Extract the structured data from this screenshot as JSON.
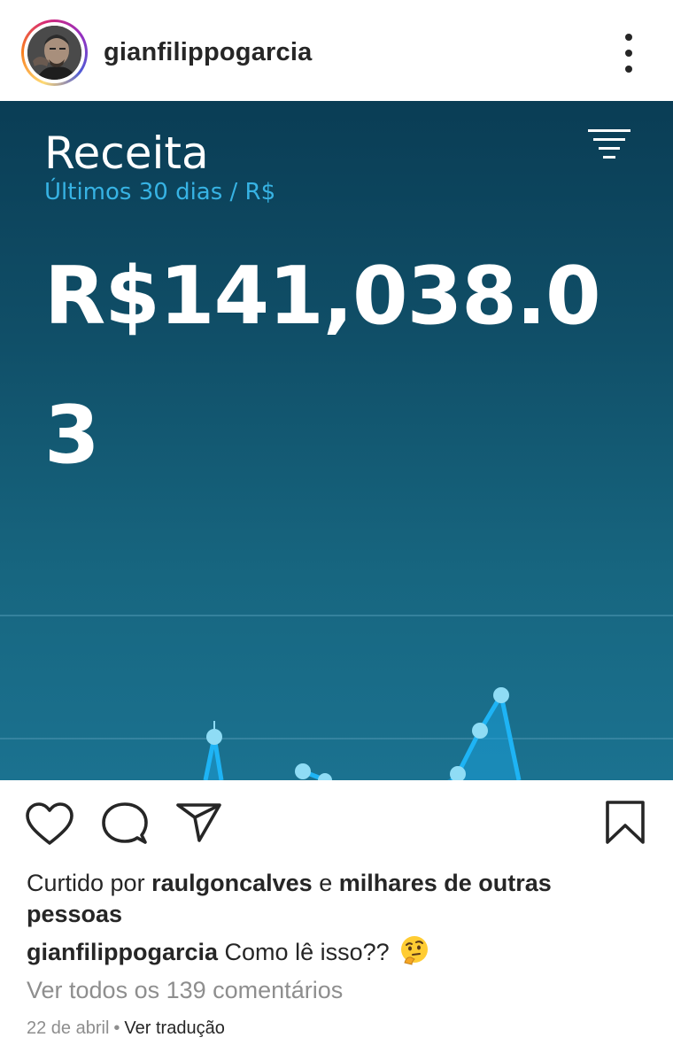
{
  "header": {
    "username": "gianfilippogarcia",
    "more_icon": "more-vertical-icon"
  },
  "post_image": {
    "title": "Receita",
    "subtitle": "Últimos 30 dias / R$",
    "amount_line1": "R$141,038.0",
    "amount_line2": "3",
    "filter_icon": "filter-icon",
    "colors": {
      "bg_top": "#0a3d55",
      "bg_bottom": "#1b7290",
      "accent": "#37b3e4",
      "line": "#1eb4f5",
      "point": "#8fdcf5"
    }
  },
  "actions": {
    "like_icon": "heart-icon",
    "comment_icon": "comment-icon",
    "share_icon": "send-icon",
    "save_icon": "bookmark-icon"
  },
  "likes": {
    "prefix": "Curtido por",
    "user": "raulgoncalves",
    "conjunction": "e",
    "others": "milhares de outras pessoas"
  },
  "caption": {
    "username": "gianfilippogarcia",
    "text": "Como lê isso??",
    "emoji": "thinking-face-emoji"
  },
  "comments": {
    "view_all": "Ver todos os 139 comentários"
  },
  "meta": {
    "date": "22 de abril",
    "separator": "•",
    "translate": "Ver tradução"
  }
}
